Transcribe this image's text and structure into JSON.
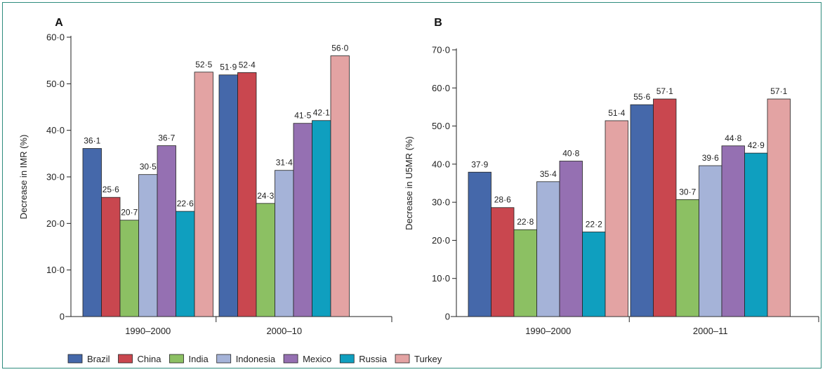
{
  "chart_data": [
    {
      "type": "bar",
      "panel_label": "A",
      "ylabel": "Decrease in IMR (%)",
      "ylim": [
        0,
        60
      ],
      "yticks": [
        "0",
        "10·0",
        "20·0",
        "30·0",
        "40·0",
        "50·0",
        "60·0"
      ],
      "categories": [
        "1990–2000",
        "2000–10"
      ],
      "series": [
        {
          "name": "Brazil",
          "values": [
            36.1,
            51.9
          ],
          "labels": [
            "36·1",
            "51·9"
          ]
        },
        {
          "name": "China",
          "values": [
            25.6,
            52.4
          ],
          "labels": [
            "25·6",
            "52·4"
          ]
        },
        {
          "name": "India",
          "values": [
            20.7,
            24.3
          ],
          "labels": [
            "20·7",
            "24·3"
          ]
        },
        {
          "name": "Indonesia",
          "values": [
            30.5,
            31.4
          ],
          "labels": [
            "30·5",
            "31·4"
          ]
        },
        {
          "name": "Mexico",
          "values": [
            36.7,
            41.5
          ],
          "labels": [
            "36·7",
            "41·5"
          ]
        },
        {
          "name": "Russia",
          "values": [
            22.6,
            42.1
          ],
          "labels": [
            "22·6",
            "42·1"
          ]
        },
        {
          "name": "Turkey",
          "values": [
            52.5,
            56.0
          ],
          "labels": [
            "52·5",
            "56·0"
          ]
        }
      ]
    },
    {
      "type": "bar",
      "panel_label": "B",
      "ylabel": "Decrease in U5MR (%)",
      "ylim": [
        0,
        70
      ],
      "yticks": [
        "0",
        "10·0",
        "20·0",
        "30·0",
        "40·0",
        "50·0",
        "60·0",
        "70·0"
      ],
      "categories": [
        "1990–2000",
        "2000–11"
      ],
      "series": [
        {
          "name": "Brazil",
          "values": [
            37.9,
            55.6
          ],
          "labels": [
            "37·9",
            "55·6"
          ]
        },
        {
          "name": "China",
          "values": [
            28.6,
            57.1
          ],
          "labels": [
            "28·6",
            "57·1"
          ]
        },
        {
          "name": "India",
          "values": [
            22.8,
            30.7
          ],
          "labels": [
            "22·8",
            "30·7"
          ]
        },
        {
          "name": "Indonesia",
          "values": [
            35.4,
            39.6
          ],
          "labels": [
            "35·4",
            "39·6"
          ]
        },
        {
          "name": "Mexico",
          "values": [
            40.8,
            44.8
          ],
          "labels": [
            "40·8",
            "44·8"
          ]
        },
        {
          "name": "Russia",
          "values": [
            22.2,
            42.9
          ],
          "labels": [
            "22·2",
            "42·9"
          ]
        },
        {
          "name": "Turkey",
          "values": [
            51.4,
            57.1
          ],
          "labels": [
            "51·4",
            "57·1"
          ]
        }
      ]
    }
  ],
  "legend": {
    "placement": "bottom-left",
    "entries": [
      {
        "name": "Brazil",
        "color": "#4568aa"
      },
      {
        "name": "China",
        "color": "#c9474f"
      },
      {
        "name": "India",
        "color": "#8cc063"
      },
      {
        "name": "Indonesia",
        "color": "#a5b3d8"
      },
      {
        "name": "Mexico",
        "color": "#9570b2"
      },
      {
        "name": "Russia",
        "color": "#0f9fbf"
      },
      {
        "name": "Turkey",
        "color": "#e3a3a3"
      }
    ]
  }
}
